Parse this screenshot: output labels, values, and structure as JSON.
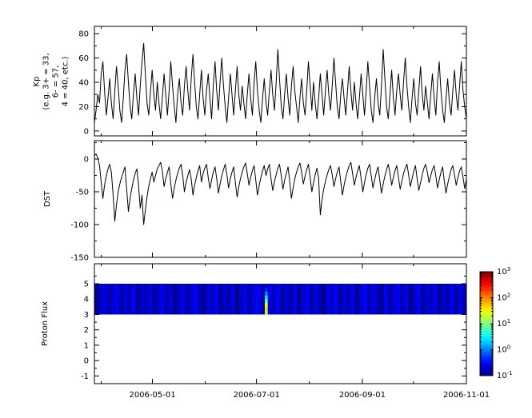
{
  "figure": {
    "background": "#ffffff",
    "axis_color": "#000000",
    "line_color": "#000000"
  },
  "xaxis": {
    "start_date": "2006-03-28",
    "end_date": "2006-11-01",
    "span_days": 218,
    "tick_labels": [
      "2006-05-01",
      "2006-07-01",
      "2006-09-01",
      "2006-11-01"
    ],
    "tick_day_offsets": [
      34,
      95,
      157,
      218
    ],
    "minor_day_offsets": [
      4,
      65,
      126,
      187
    ]
  },
  "chart_data": [
    {
      "type": "line",
      "name": "kp",
      "ylabel": "Kp (e.g. 3+ = 33, 6- = 57, 4 = 40, etc.)",
      "ylabel_lines": [
        "Kp",
        "(e.g. 3+ = 33,",
        "6- = 57,",
        "4 = 40, etc.)"
      ],
      "ylim": [
        -4,
        86
      ],
      "yticks": [
        0,
        20,
        40,
        60,
        80
      ],
      "yminorticks": [
        10,
        30,
        50,
        70
      ],
      "x_start": "2006-03-28",
      "x_end": "2006-11-01",
      "values": [
        7,
        17,
        30,
        23,
        47,
        57,
        33,
        13,
        27,
        43,
        23,
        10,
        33,
        53,
        37,
        17,
        7,
        27,
        50,
        63,
        40,
        20,
        10,
        30,
        47,
        27,
        13,
        37,
        57,
        72,
        47,
        23,
        13,
        33,
        50,
        30,
        17,
        40,
        23,
        10,
        27,
        47,
        30,
        13,
        33,
        57,
        37,
        20,
        7,
        30,
        43,
        23,
        13,
        37,
        53,
        33,
        17,
        43,
        63,
        40,
        20,
        10,
        30,
        50,
        27,
        13,
        33,
        47,
        27,
        10,
        37,
        57,
        33,
        17,
        40,
        60,
        37,
        20,
        7,
        27,
        47,
        30,
        13,
        33,
        53,
        30,
        17,
        37,
        23,
        10,
        30,
        47,
        27,
        13,
        40,
        57,
        33,
        17,
        7,
        27,
        43,
        23,
        13,
        33,
        50,
        30,
        17,
        40,
        67,
        43,
        20,
        10,
        30,
        47,
        27,
        13,
        37,
        53,
        33,
        20,
        7,
        27,
        43,
        23,
        13,
        33,
        57,
        37,
        17,
        40,
        23,
        10,
        27,
        47,
        30,
        13,
        33,
        50,
        30,
        17,
        37,
        60,
        40,
        20,
        10,
        30,
        43,
        27,
        13,
        33,
        53,
        33,
        17,
        40,
        23,
        10,
        27,
        47,
        30,
        13,
        33,
        57,
        37,
        17,
        7,
        27,
        43,
        23,
        13,
        37,
        67,
        43,
        20,
        10,
        30,
        50,
        27,
        13,
        33,
        47,
        30,
        17,
        40,
        60,
        37,
        20,
        7,
        27,
        43,
        23,
        13,
        33,
        53,
        30,
        17,
        37,
        23,
        10,
        30,
        47,
        27,
        13,
        40,
        57,
        33,
        17,
        7,
        27,
        43,
        23,
        13,
        33,
        50,
        30,
        17,
        37,
        57,
        33,
        20,
        10
      ]
    },
    {
      "type": "line",
      "name": "dst",
      "ylabel": "DST",
      "ylim": [
        -150,
        28
      ],
      "yticks": [
        0,
        -50,
        -100,
        -150
      ],
      "yminorticks": [
        25,
        -25,
        -75,
        -125
      ],
      "x_start": "2006-03-28",
      "x_end": "2006-11-01",
      "values": [
        5,
        8,
        2,
        -10,
        -35,
        -60,
        -40,
        -25,
        -15,
        -8,
        -20,
        -55,
        -95,
        -70,
        -50,
        -38,
        -28,
        -20,
        -12,
        -45,
        -80,
        -60,
        -45,
        -32,
        -22,
        -15,
        -40,
        -75,
        -55,
        -100,
        -78,
        -58,
        -42,
        -30,
        -20,
        -35,
        -25,
        -15,
        -10,
        -5,
        -18,
        -42,
        -30,
        -20,
        -12,
        -38,
        -60,
        -45,
        -32,
        -22,
        -14,
        -8,
        -25,
        -50,
        -35,
        -25,
        -16,
        -30,
        -55,
        -40,
        -28,
        -18,
        -10,
        -35,
        -22,
        -14,
        -8,
        -28,
        -45,
        -32,
        -20,
        -12,
        -30,
        -52,
        -38,
        -26,
        -16,
        -8,
        -24,
        -44,
        -30,
        -20,
        -12,
        -36,
        -58,
        -42,
        -30,
        -20,
        -12,
        -6,
        -22,
        -40,
        -28,
        -18,
        -10,
        -32,
        -55,
        -40,
        -28,
        -18,
        -10,
        -25,
        -15,
        -8,
        -30,
        -48,
        -34,
        -24,
        -14,
        -8,
        -26,
        -46,
        -32,
        -22,
        -12,
        -35,
        -60,
        -44,
        -30,
        -20,
        -12,
        -6,
        -20,
        -38,
        -26,
        -16,
        -8,
        -28,
        -50,
        -36,
        -24,
        -14,
        -30,
        -85,
        -62,
        -46,
        -34,
        -24,
        -16,
        -10,
        -24,
        -42,
        -30,
        -20,
        -12,
        -34,
        -55,
        -40,
        -28,
        -18,
        -10,
        -5,
        -22,
        -40,
        -28,
        -18,
        -10,
        -30,
        -50,
        -36,
        -24,
        -14,
        -8,
        -26,
        -44,
        -32,
        -20,
        -12,
        -32,
        -52,
        -38,
        -26,
        -16,
        -8,
        -22,
        -40,
        -28,
        -18,
        -10,
        -28,
        -46,
        -34,
        -22,
        -14,
        -8,
        -24,
        -42,
        -30,
        -18,
        -10,
        -30,
        -48,
        -36,
        -24,
        -14,
        -8,
        -20,
        -36,
        -26,
        -16,
        -10,
        -26,
        -44,
        -32,
        -20,
        -12,
        -34,
        -52,
        -38,
        -26,
        -16,
        -10,
        -24,
        -40,
        -28,
        -18,
        -12,
        -28,
        -45,
        -30
      ]
    },
    {
      "type": "heatmap",
      "name": "proton-flux",
      "ylabel": "Proton Flux",
      "ylim": [
        -1.5,
        6.3
      ],
      "yticks": [
        -1,
        0,
        1,
        2,
        3,
        4,
        5
      ],
      "yminorticks": [
        -0.5,
        0.5,
        1.5,
        2.5,
        3.5,
        4.5,
        5.5
      ],
      "band_y_range": [
        3,
        5
      ],
      "x_start": "2006-03-28",
      "x_end": "2006-11-01",
      "background_columns": [
        0.12,
        0.18,
        0.25,
        0.15,
        0.2,
        0.3,
        0.14,
        0.22,
        0.17,
        0.28,
        0.12,
        0.2,
        0.16,
        0.24,
        0.13,
        0.19,
        0.27,
        0.15,
        0.22,
        0.12,
        0.18,
        0.26,
        0.14,
        0.21,
        0.3,
        0.16,
        0.12,
        0.23,
        0.17,
        0.28,
        0.13,
        0.2,
        0.15,
        0.25,
        0.11,
        0.19,
        0.27,
        0.14,
        0.22,
        0.32,
        0.16,
        0.12,
        0.24,
        0.18,
        0.28,
        0.13,
        0.21,
        0.15,
        0.26,
        0.12,
        0.2,
        0.3,
        0.14,
        0.23,
        0.17,
        0.11,
        0.25,
        0.19,
        0.28,
        0.13,
        0.22,
        0.16,
        0.26,
        0.12,
        0.2,
        0.31,
        0.15,
        0.24,
        0.18,
        0.12,
        0.27,
        0.14,
        0.21,
        0.3,
        0.16,
        0.25,
        0.11,
        0.19,
        0.28,
        0.13,
        0.22,
        0.17,
        0.26,
        0.12,
        0.2,
        0.15,
        0.29,
        0.14,
        0.23,
        0.18
      ],
      "event": {
        "x_fraction": 0.458,
        "width_fraction": 0.008,
        "profile_bottom_to_top": [
          18,
          45,
          25,
          8,
          2.5,
          1.0,
          0.4,
          0.2
        ]
      },
      "color_scale": {
        "colormap": "jet",
        "scale": "log",
        "min_exp": -1,
        "max_exp": 3,
        "tick_base": "10",
        "tick_exponents": [
          3,
          2,
          1,
          0,
          -1
        ]
      }
    }
  ]
}
